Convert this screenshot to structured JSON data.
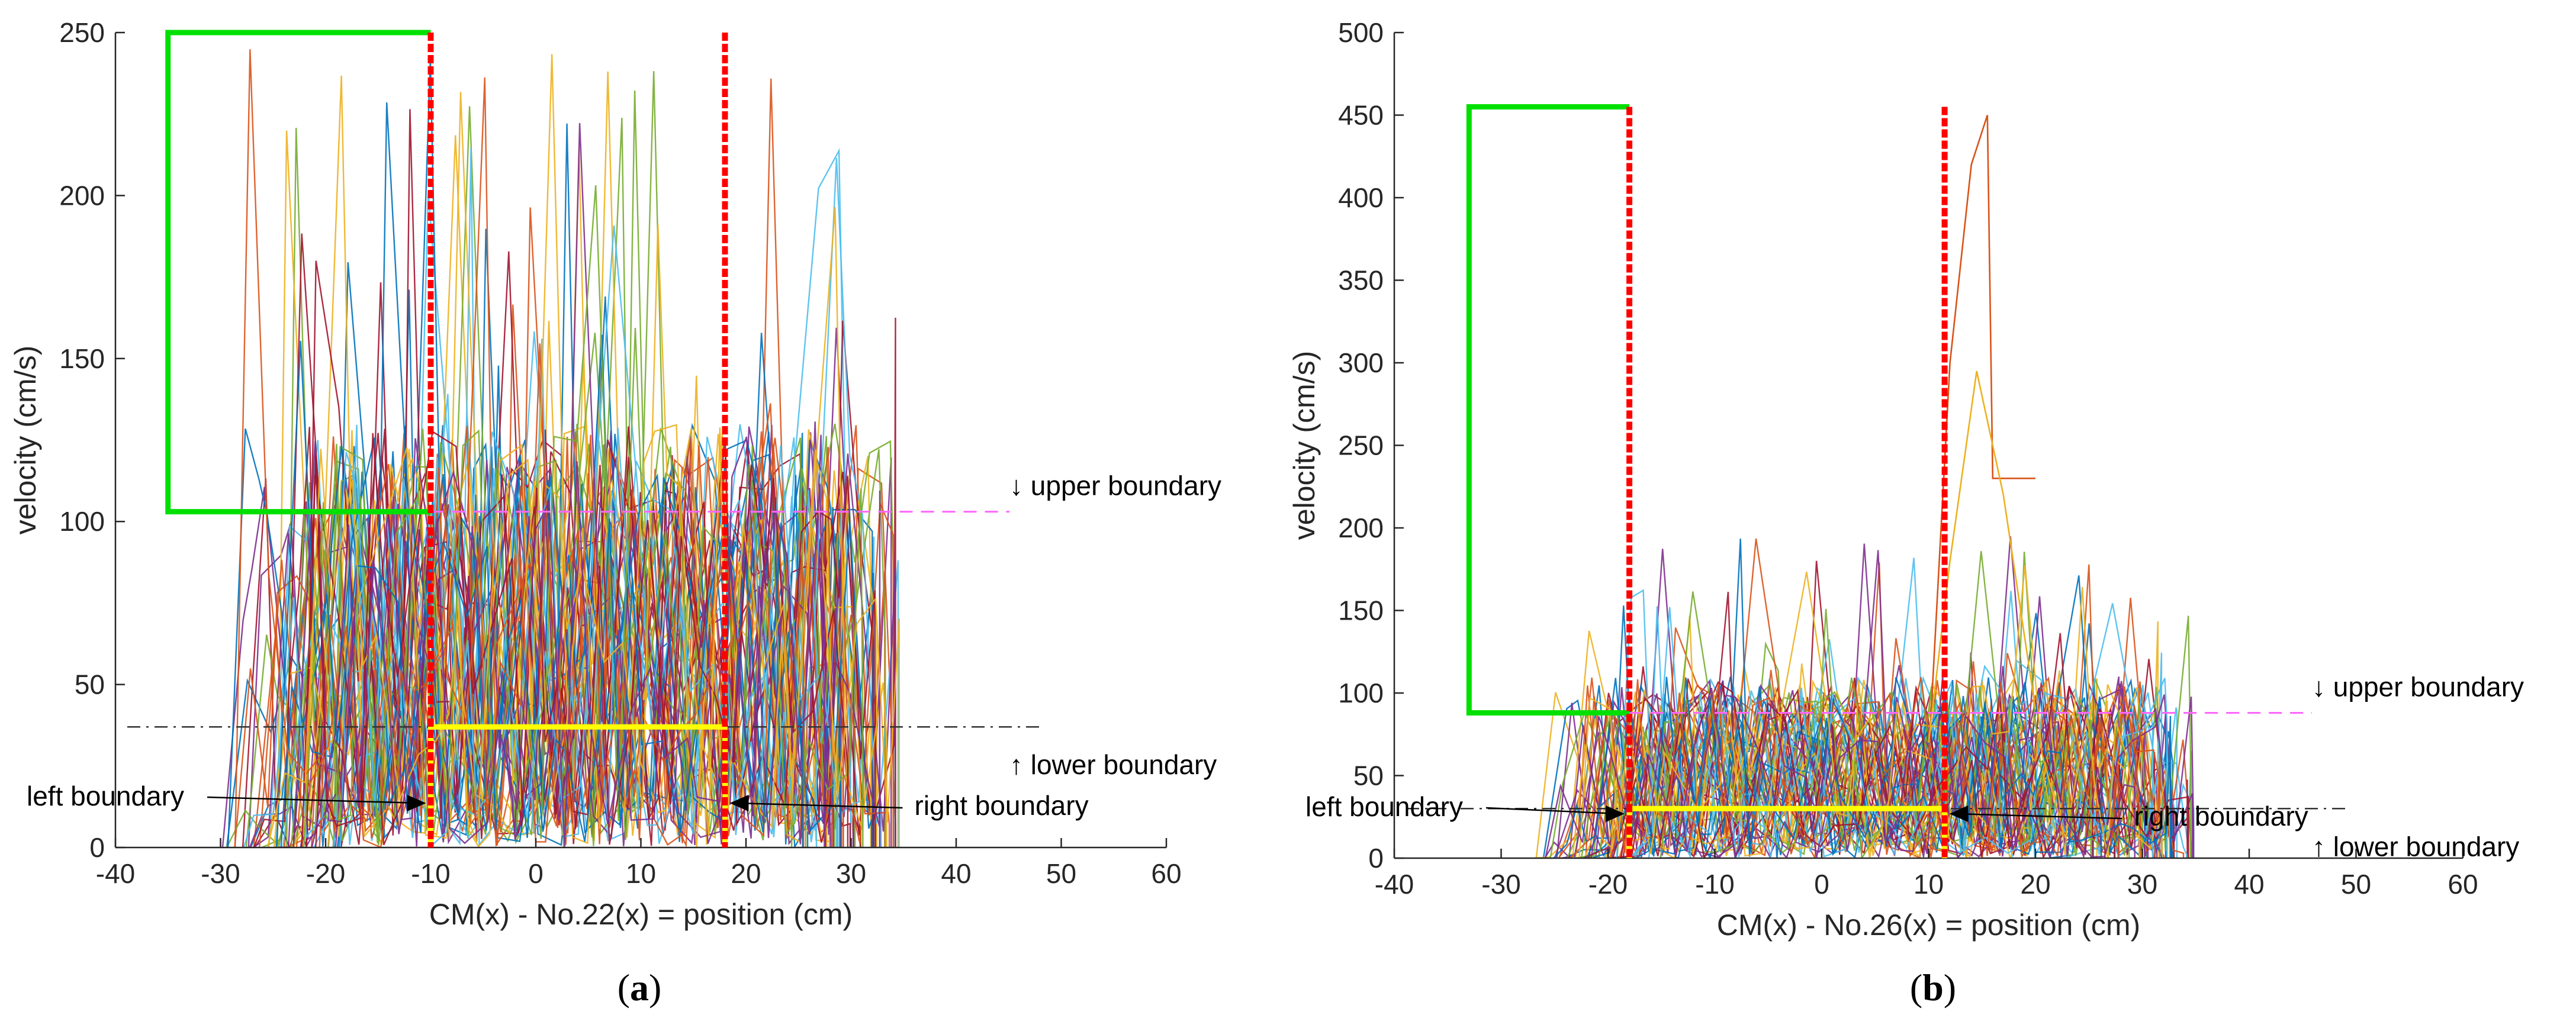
{
  "colors": {
    "green_box": "#00e000",
    "red_line": "#ff0000",
    "yellow_box": "#ffff00",
    "upper_line": "#ff66ff",
    "lower_line": "#333333",
    "axis": "#262626",
    "trace_palette": [
      "#0072bd",
      "#d95319",
      "#edb120",
      "#7e2f8e",
      "#77ac30",
      "#4dbeee",
      "#a2142f"
    ]
  },
  "chart_data": [
    {
      "id": "a",
      "type": "line",
      "caption_letter": "a",
      "caption_open": "(",
      "caption_close": ")",
      "xlabel": "CM(x) - No.22(x) = position (cm)",
      "ylabel": "velocity (cm/s)",
      "xlim": [
        -40,
        60
      ],
      "ylim": [
        0,
        250
      ],
      "xticks": [
        -40,
        -30,
        -20,
        -10,
        0,
        10,
        20,
        30,
        40,
        50,
        60
      ],
      "yticks": [
        0,
        50,
        100,
        150,
        200,
        250
      ],
      "traces": {
        "count": 60,
        "x_range": [
          -30,
          35
        ],
        "typical_max": 130,
        "peak_max": 245,
        "seed": 7
      },
      "left_boundary_x": -10,
      "right_boundary_x": 18,
      "upper_boundary_y": 103,
      "lower_boundary_y": 37,
      "green_box": {
        "x_left": -35,
        "y_top": 250,
        "y_bottom": 103
      },
      "annotations": {
        "upper": "↓ upper boundary",
        "lower": "↑ lower boundary",
        "left": "left boundary",
        "right": "right boundary"
      }
    },
    {
      "id": "b",
      "type": "line",
      "caption_letter": "b",
      "caption_open": "(",
      "caption_close": ")",
      "xlabel": "CM(x) - No.26(x) = position (cm)",
      "ylabel": "velocity (cm/s)",
      "xlim": [
        -40,
        60
      ],
      "ylim": [
        0,
        500
      ],
      "xticks": [
        -40,
        -30,
        -20,
        -10,
        0,
        10,
        20,
        30,
        40,
        50,
        60
      ],
      "yticks": [
        0,
        50,
        100,
        150,
        200,
        250,
        300,
        350,
        400,
        450,
        500
      ],
      "traces": {
        "count": 60,
        "x_range": [
          -27,
          35
        ],
        "typical_max": 110,
        "peak_max": 200,
        "seed": 13
      },
      "spike_traces": [
        {
          "x": [
            10,
            12,
            14,
            15.5,
            16,
            20
          ],
          "y": [
            60,
            300,
            420,
            450,
            230,
            230
          ]
        },
        {
          "x": [
            10,
            12,
            14.5,
            17,
            20
          ],
          "y": [
            70,
            180,
            295,
            220,
            90
          ]
        }
      ],
      "left_boundary_x": -18,
      "right_boundary_x": 11.5,
      "upper_boundary_y": 88,
      "lower_boundary_y": 30,
      "green_box": {
        "x_left": -33,
        "y_top": 455,
        "y_bottom": 88
      },
      "annotations": {
        "upper": "↓ upper boundary",
        "lower": "↑ lower boundary",
        "left": "left boundary",
        "right": "right boundary"
      }
    }
  ]
}
